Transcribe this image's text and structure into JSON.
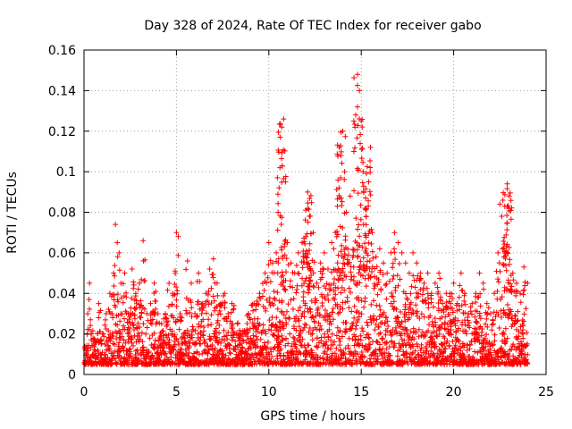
{
  "chart_data": {
    "type": "scatter",
    "title": "Day 328 of 2024, Rate Of TEC Index for receiver gabo",
    "xlabel": "GPS time / hours",
    "ylabel": "ROTI / TECUs",
    "xlim": [
      0,
      25
    ],
    "ylim": [
      0,
      0.16
    ],
    "xticks": [
      0,
      5,
      10,
      15,
      20,
      25
    ],
    "xtick_labels": [
      "0",
      "5",
      "10",
      "15",
      "20",
      "25"
    ],
    "yticks": [
      0,
      0.02,
      0.04,
      0.06,
      0.08,
      0.1,
      0.12,
      0.14,
      0.16
    ],
    "ytick_labels": [
      "0",
      "0.02",
      "0.04",
      "0.06",
      "0.08",
      "0.1",
      "0.12",
      "0.14",
      "0.16"
    ],
    "grid": true,
    "marker": "+",
    "color": "#ff0000",
    "series": [
      {
        "name": "ROTI",
        "points": [
          [
            0.1,
            0.012
          ],
          [
            0.2,
            0.03
          ],
          [
            0.3,
            0.045
          ],
          [
            0.4,
            0.02
          ],
          [
            0.6,
            0.015
          ],
          [
            0.8,
            0.035
          ],
          [
            1.0,
            0.02
          ],
          [
            1.2,
            0.03
          ],
          [
            1.4,
            0.04
          ],
          [
            1.6,
            0.05
          ],
          [
            1.7,
            0.074
          ],
          [
            1.8,
            0.065
          ],
          [
            1.9,
            0.06
          ],
          [
            2.0,
            0.045
          ],
          [
            2.2,
            0.05
          ],
          [
            2.4,
            0.03
          ],
          [
            2.6,
            0.052
          ],
          [
            2.8,
            0.04
          ],
          [
            3.0,
            0.045
          ],
          [
            3.2,
            0.066
          ],
          [
            3.4,
            0.03
          ],
          [
            3.6,
            0.035
          ],
          [
            3.8,
            0.045
          ],
          [
            4.0,
            0.03
          ],
          [
            4.2,
            0.025
          ],
          [
            4.4,
            0.03
          ],
          [
            4.6,
            0.045
          ],
          [
            4.8,
            0.04
          ],
          [
            5.0,
            0.07
          ],
          [
            5.1,
            0.068
          ],
          [
            5.2,
            0.03
          ],
          [
            5.4,
            0.02
          ],
          [
            5.6,
            0.056
          ],
          [
            5.8,
            0.045
          ],
          [
            6.0,
            0.03
          ],
          [
            6.2,
            0.05
          ],
          [
            6.4,
            0.035
          ],
          [
            6.6,
            0.04
          ],
          [
            6.8,
            0.052
          ],
          [
            7.0,
            0.057
          ],
          [
            7.2,
            0.045
          ],
          [
            7.4,
            0.035
          ],
          [
            7.6,
            0.04
          ],
          [
            7.8,
            0.03
          ],
          [
            8.0,
            0.035
          ],
          [
            8.3,
            0.025
          ],
          [
            8.6,
            0.02
          ],
          [
            8.9,
            0.03
          ],
          [
            9.2,
            0.035
          ],
          [
            9.5,
            0.04
          ],
          [
            9.8,
            0.05
          ],
          [
            10.0,
            0.065
          ],
          [
            10.2,
            0.055
          ],
          [
            10.4,
            0.06
          ],
          [
            10.5,
            0.08
          ],
          [
            10.6,
            0.102
          ],
          [
            10.7,
            0.122
          ],
          [
            10.8,
            0.126
          ],
          [
            10.9,
            0.095
          ],
          [
            11.0,
            0.065
          ],
          [
            11.2,
            0.055
          ],
          [
            11.4,
            0.05
          ],
          [
            11.6,
            0.06
          ],
          [
            11.8,
            0.065
          ],
          [
            12.0,
            0.068
          ],
          [
            12.1,
            0.09
          ],
          [
            12.2,
            0.078
          ],
          [
            12.4,
            0.07
          ],
          [
            12.6,
            0.045
          ],
          [
            12.8,
            0.055
          ],
          [
            13.0,
            0.06
          ],
          [
            13.2,
            0.052
          ],
          [
            13.4,
            0.065
          ],
          [
            13.6,
            0.07
          ],
          [
            13.8,
            0.092
          ],
          [
            13.9,
            0.108
          ],
          [
            14.0,
            0.12
          ],
          [
            14.1,
            0.1
          ],
          [
            14.2,
            0.08
          ],
          [
            14.4,
            0.088
          ],
          [
            14.6,
            0.11
          ],
          [
            14.7,
            0.128
          ],
          [
            14.8,
            0.148
          ],
          [
            14.9,
            0.14
          ],
          [
            15.0,
            0.125
          ],
          [
            15.1,
            0.1
          ],
          [
            15.2,
            0.082
          ],
          [
            15.4,
            0.095
          ],
          [
            15.5,
            0.112
          ],
          [
            15.6,
            0.07
          ],
          [
            15.8,
            0.058
          ],
          [
            16.0,
            0.062
          ],
          [
            16.2,
            0.055
          ],
          [
            16.4,
            0.05
          ],
          [
            16.6,
            0.06
          ],
          [
            16.8,
            0.07
          ],
          [
            17.0,
            0.065
          ],
          [
            17.2,
            0.06
          ],
          [
            17.4,
            0.055
          ],
          [
            17.6,
            0.05
          ],
          [
            17.8,
            0.06
          ],
          [
            18.0,
            0.055
          ],
          [
            18.2,
            0.05
          ],
          [
            18.4,
            0.045
          ],
          [
            18.6,
            0.05
          ],
          [
            18.8,
            0.04
          ],
          [
            19.0,
            0.045
          ],
          [
            19.2,
            0.05
          ],
          [
            19.4,
            0.035
          ],
          [
            19.6,
            0.04
          ],
          [
            19.8,
            0.04
          ],
          [
            20.0,
            0.045
          ],
          [
            20.2,
            0.035
          ],
          [
            20.4,
            0.05
          ],
          [
            20.6,
            0.04
          ],
          [
            20.8,
            0.03
          ],
          [
            21.0,
            0.035
          ],
          [
            21.2,
            0.04
          ],
          [
            21.4,
            0.05
          ],
          [
            21.6,
            0.045
          ],
          [
            21.8,
            0.035
          ],
          [
            22.0,
            0.03
          ],
          [
            22.2,
            0.04
          ],
          [
            22.4,
            0.06
          ],
          [
            22.5,
            0.084
          ],
          [
            22.6,
            0.078
          ],
          [
            22.8,
            0.06
          ],
          [
            22.9,
            0.094
          ],
          [
            23.0,
            0.088
          ],
          [
            23.2,
            0.05
          ],
          [
            23.4,
            0.045
          ],
          [
            23.6,
            0.04
          ],
          [
            23.8,
            0.053
          ],
          [
            24.0,
            0.045
          ]
        ]
      }
    ]
  }
}
